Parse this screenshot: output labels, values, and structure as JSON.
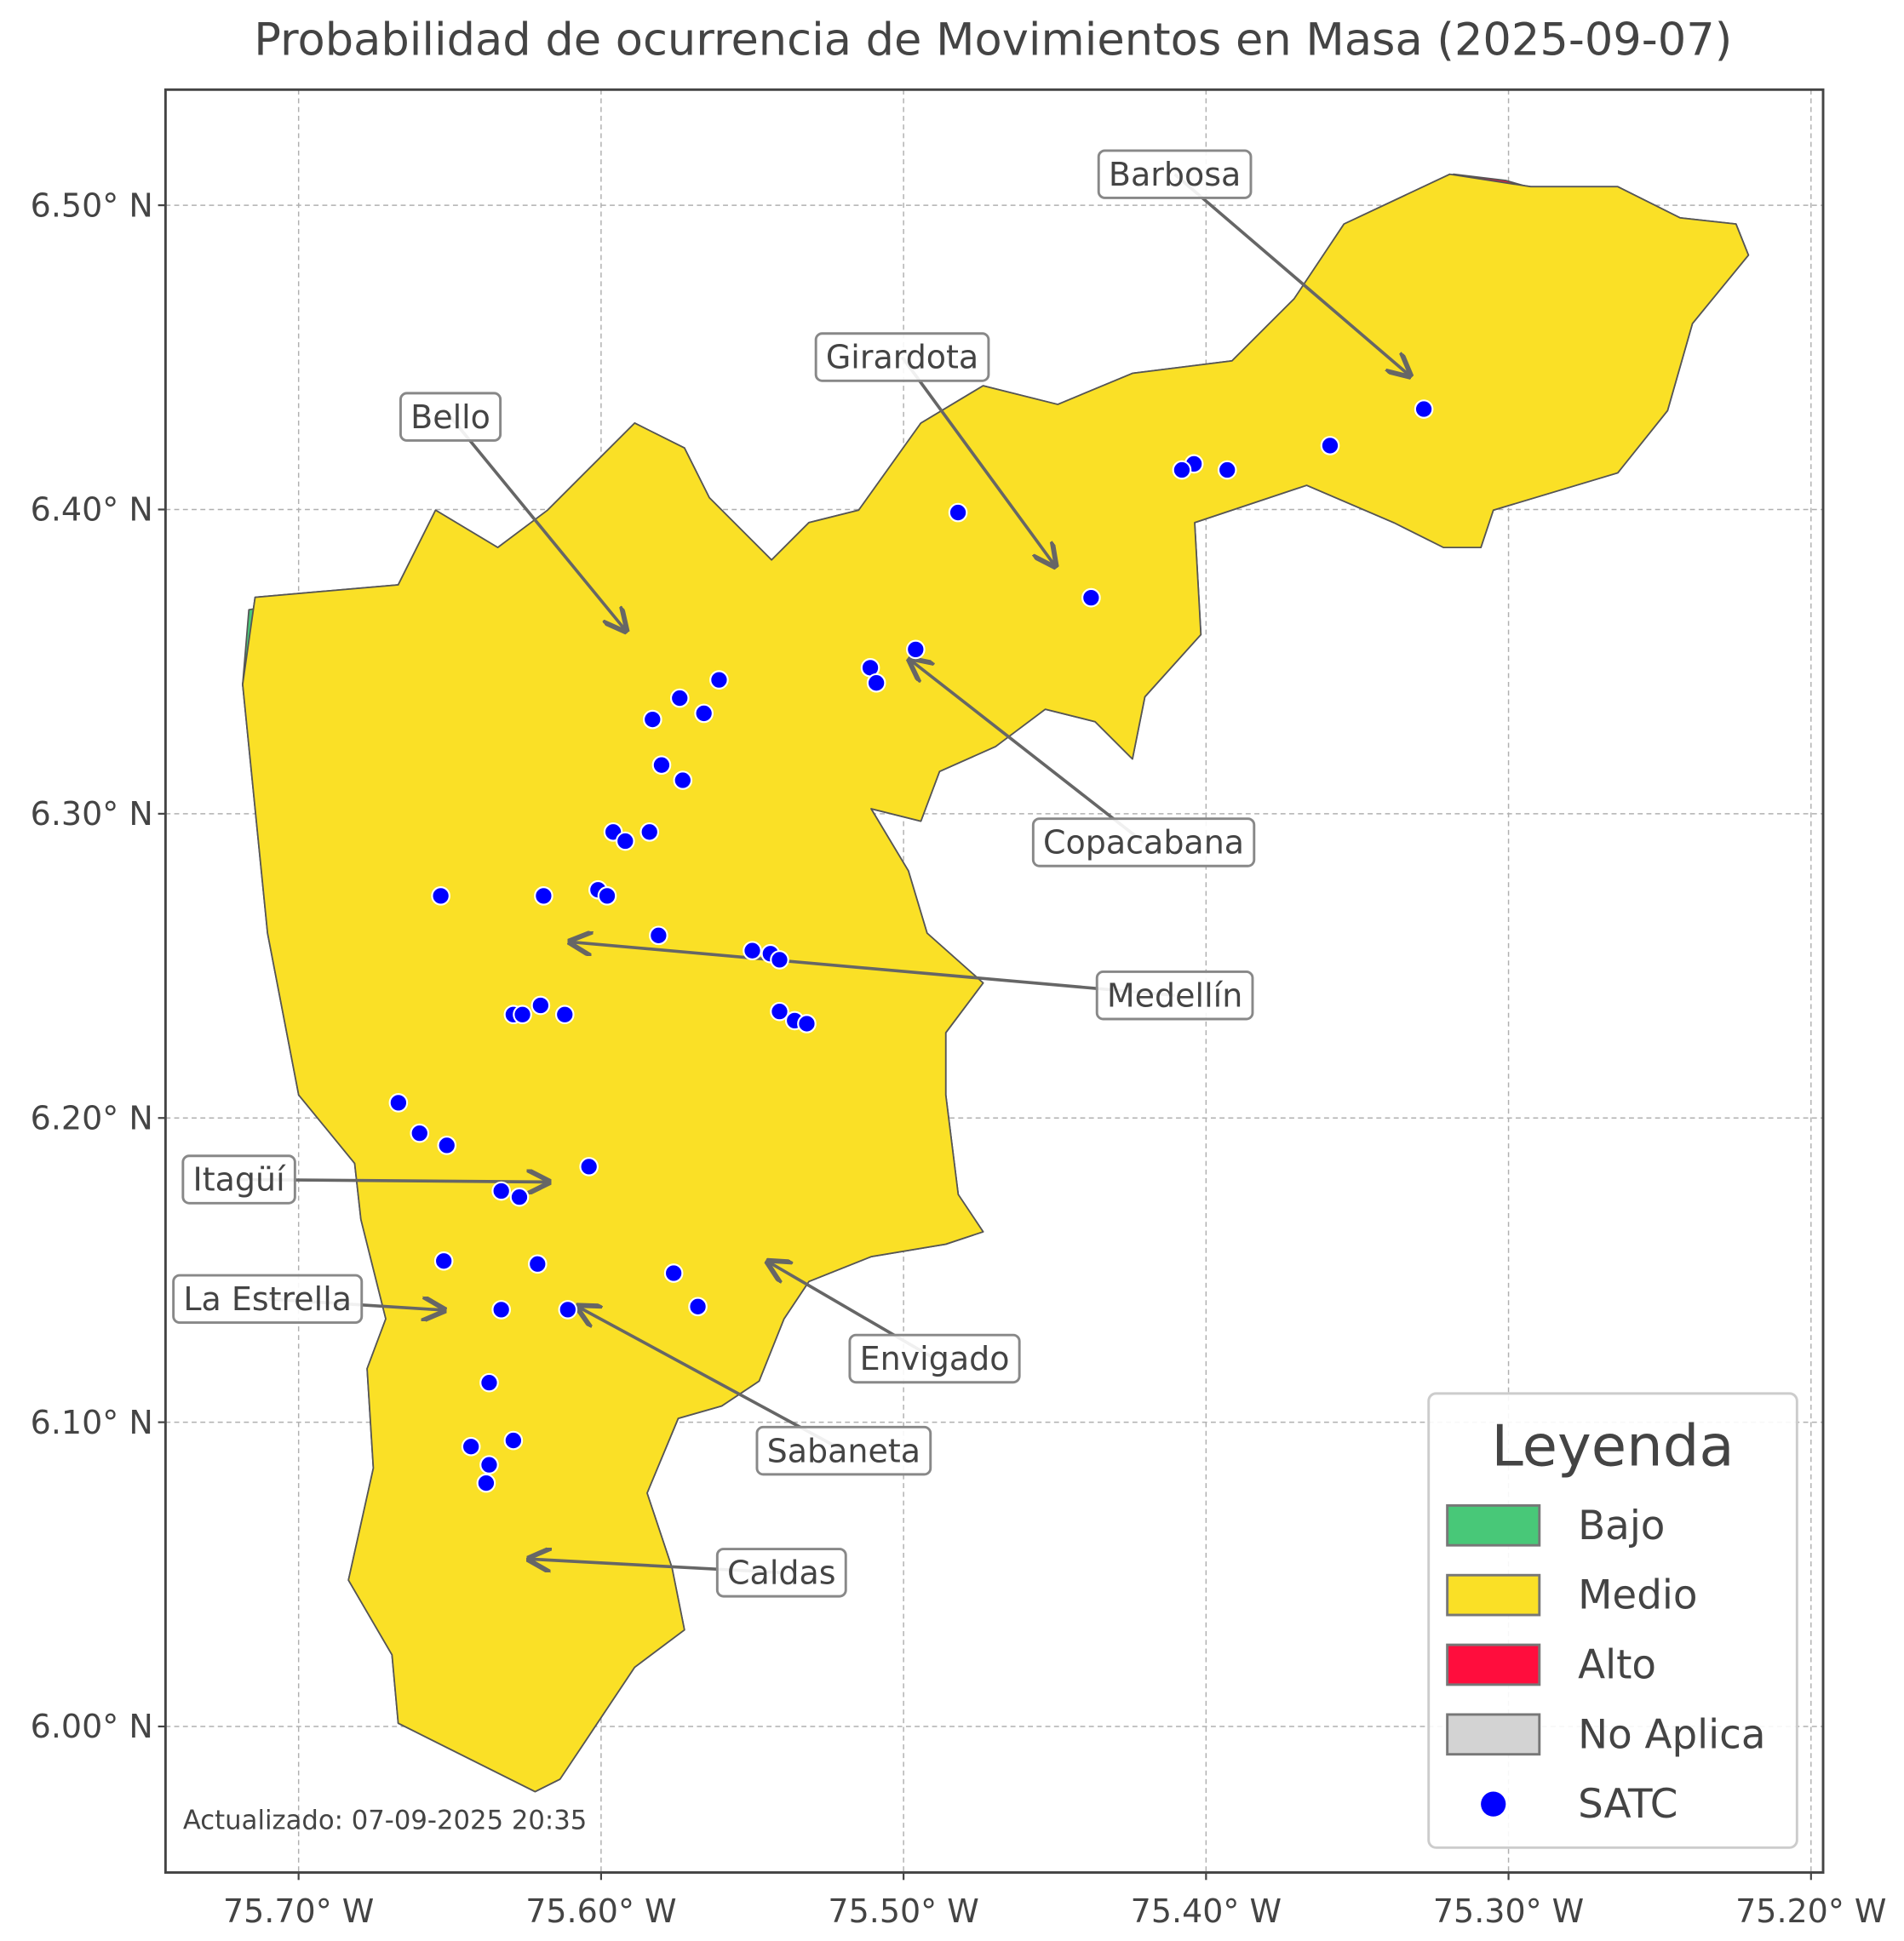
{
  "chart_data": {
    "type": "map",
    "title": "Probabilidad de ocurrencia de Movimientos en Masa (2025-09-07)",
    "xlim": [
      -75.744,
      -75.196
    ],
    "ylim": [
      5.952,
      6.538
    ],
    "xticks": [
      {
        "value": -75.7,
        "label": "75.70° W"
      },
      {
        "value": -75.6,
        "label": "75.60° W"
      },
      {
        "value": -75.5,
        "label": "75.50° W"
      },
      {
        "value": -75.4,
        "label": "75.40° W"
      },
      {
        "value": -75.3,
        "label": "75.30° W"
      },
      {
        "value": -75.2,
        "label": "75.20° W"
      }
    ],
    "yticks": [
      {
        "value": 6.0,
        "label": "6.00° N"
      },
      {
        "value": 6.1,
        "label": "6.10° N"
      },
      {
        "value": 6.2,
        "label": "6.20° N"
      },
      {
        "value": 6.3,
        "label": "6.30° N"
      },
      {
        "value": 6.4,
        "label": "6.40° N"
      },
      {
        "value": 6.5,
        "label": "6.50° N"
      }
    ],
    "grid": true,
    "annotations": [
      "Barbosa",
      "Girardota",
      "Bello",
      "Copacabana",
      "Medellín",
      "Itagüí",
      "La Estrella",
      "Envigado",
      "Sabaneta",
      "Caldas"
    ],
    "legend": {
      "title": "Leyenda",
      "position": "lower right",
      "items": [
        {
          "name": "Bajo",
          "color": "#48c878"
        },
        {
          "name": "Medio",
          "color": "#fae026"
        },
        {
          "name": "Alto",
          "color": "#ff0d3d"
        },
        {
          "name": "No Aplica",
          "color": "#d3d3d3"
        }
      ]
    },
    "series": [
      {
        "name": "SATC",
        "color": "#0000ff",
        "lon": [
          -75.328,
          -75.359,
          -75.393,
          -75.404,
          -75.408,
          -75.482,
          -75.438,
          -75.496,
          -75.511,
          -75.509,
          -75.561,
          -75.574,
          -75.566,
          -75.583,
          -75.58,
          -75.573,
          -75.584,
          -75.596,
          -75.592,
          -75.653,
          -75.619,
          -75.601,
          -75.598,
          -75.581,
          -75.55,
          -75.544,
          -75.541,
          -75.629,
          -75.626,
          -75.62,
          -75.612,
          -75.541,
          -75.536,
          -75.532,
          -75.667,
          -75.66,
          -75.651,
          -75.604,
          -75.633,
          -75.627,
          -75.652,
          -75.621,
          -75.576,
          -75.568,
          -75.633,
          -75.611,
          -75.637,
          -75.643,
          -75.629,
          -75.637,
          -75.638
        ],
        "lat": [
          6.433,
          6.421,
          6.413,
          6.415,
          6.413,
          6.399,
          6.371,
          6.354,
          6.348,
          6.343,
          6.344,
          6.338,
          6.333,
          6.331,
          6.316,
          6.311,
          6.294,
          6.294,
          6.291,
          6.273,
          6.273,
          6.275,
          6.273,
          6.26,
          6.255,
          6.254,
          6.252,
          6.234,
          6.234,
          6.237,
          6.234,
          6.235,
          6.232,
          6.231,
          6.205,
          6.195,
          6.191,
          6.184,
          6.176,
          6.174,
          6.153,
          6.152,
          6.149,
          6.138,
          6.137,
          6.137,
          6.113,
          6.092,
          6.094,
          6.086,
          6.08
        ]
      }
    ],
    "footer": "Actualizado: 07-09-2025 20:35"
  }
}
